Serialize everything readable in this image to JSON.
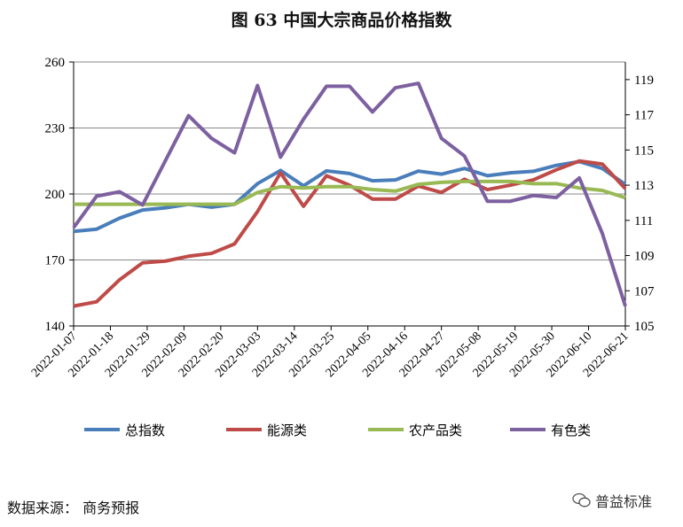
{
  "chart_data": {
    "type": "line",
    "title": "图 63  中国大宗商品价格指数",
    "xlabel": "",
    "ylabel": "",
    "ylim": [
      140,
      260
    ],
    "yticks": [
      140,
      170,
      200,
      230,
      260
    ],
    "y2lim": [
      105,
      120
    ],
    "y2ticks": [
      105,
      107,
      109,
      111,
      113,
      115,
      117,
      119
    ],
    "grid": true,
    "legend_position": "bottom",
    "x_tick_labels": [
      "2022-01-07",
      "2022-01-18",
      "2022-01-29",
      "2022-02-09",
      "2022-02-20",
      "2022-03-03",
      "2022-03-14",
      "2022-03-25",
      "2022-04-05",
      "2022-04-16",
      "2022-04-27",
      "2022-05-08",
      "2022-05-19",
      "2022-05-30",
      "2022-06-10",
      "2022-06-21"
    ],
    "point_count": 25,
    "series": [
      {
        "name": "总指数",
        "color": "#4a7ebb",
        "values": [
          183,
          184,
          189,
          192.7,
          193.7,
          195.3,
          194,
          195.3,
          204.7,
          210.7,
          203.7,
          210.5,
          209.3,
          206,
          206.4,
          210.4,
          209,
          211.6,
          208.3,
          209.6,
          210.3,
          213,
          214.7,
          211.6,
          204.3
        ]
      },
      {
        "name": "能源类",
        "color": "#be4b48",
        "values": [
          149,
          151,
          161,
          168.7,
          169.5,
          171.7,
          173,
          177.3,
          192,
          209.6,
          194.4,
          208.3,
          204,
          197.7,
          197.7,
          203.6,
          200.7,
          206.7,
          202,
          204,
          206.4,
          211,
          215,
          213.6,
          202.4
        ]
      },
      {
        "name": "农产品类",
        "color": "#98b954",
        "values": [
          195.3,
          195.3,
          195.3,
          195.3,
          195.3,
          195.3,
          195.3,
          195.3,
          200.7,
          203.3,
          202.7,
          203.3,
          203.3,
          202,
          201.3,
          204.4,
          205.3,
          205.7,
          205.7,
          205.7,
          204.7,
          204.7,
          202.7,
          201.6,
          198.3
        ]
      },
      {
        "name": "有色类",
        "color": "#7d60a0",
        "values": [
          184.7,
          199,
          201,
          195,
          215.3,
          235.6,
          225.3,
          218.7,
          249.3,
          216.7,
          234,
          249,
          249,
          237.3,
          248.3,
          250.3,
          225.3,
          217.3,
          196.7,
          196.7,
          199.3,
          198.4,
          207.3,
          182,
          149
        ]
      }
    ]
  },
  "source_note": "数据来源：  商务预报",
  "watermark": "普益标准"
}
